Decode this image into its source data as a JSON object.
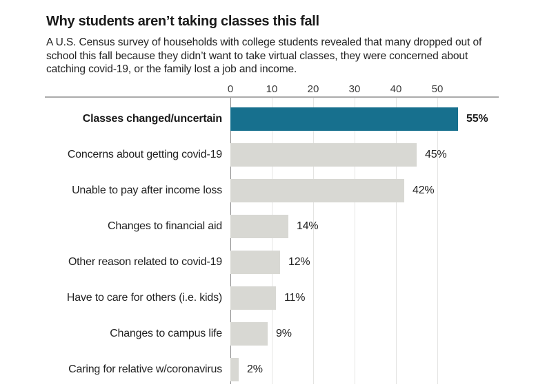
{
  "chart_data": {
    "type": "bar",
    "orientation": "horizontal",
    "title": "Why students aren’t taking classes this fall",
    "subtitle": "A U.S. Census survey of households with college students revealed that many dropped out of school this fall because they didn’t want to take virtual classes, they were concerned about catching covid-19, or the family lost a job and income.",
    "xlabel": "",
    "ylabel": "",
    "unit": "%",
    "axis": {
      "ticks": [
        0,
        10,
        20,
        30,
        40,
        50
      ],
      "xlim": [
        0,
        65
      ],
      "grid": true,
      "tick_position": "top"
    },
    "categories": [
      "Classes changed/uncertain",
      "Concerns about getting covid-19",
      "Unable to pay after income loss",
      "Changes to financial aid",
      "Other reason related to covid-19",
      "Have to care for others (i.e. kids)",
      "Changes to campus life",
      "Caring for relative w/coronavirus"
    ],
    "values": [
      55,
      45,
      42,
      14,
      12,
      11,
      9,
      2
    ],
    "value_labels": [
      "55%",
      "45%",
      "42%",
      "14%",
      "12%",
      "11%",
      "9%",
      "2%"
    ],
    "highlight_index": 0,
    "legend": null,
    "colors": {
      "highlight_bar": "#17708E",
      "bar": "#D8D8D3",
      "axis_line": "#ABABAB",
      "baseline": "#8A8A8A",
      "gridline": "#E4E4E2",
      "title_text": "#1A1A1A",
      "body_text": "#222222",
      "tick_text": "#3D3D3D"
    }
  }
}
